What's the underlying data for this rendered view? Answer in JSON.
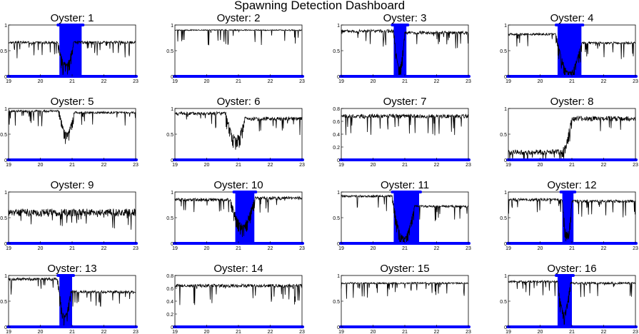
{
  "title": "Spawning Detection Dashboard",
  "colors": {
    "trace": "#000000",
    "spawn": "#0000ff",
    "axis": "#000000",
    "background": "#ffffff"
  },
  "chart_data": [
    {
      "type": "line",
      "title": "Oyster: 1",
      "xlim": [
        19,
        23
      ],
      "ylim": [
        0,
        1
      ],
      "xticks": [
        19,
        20,
        21,
        22,
        23
      ],
      "yticks": [
        0,
        0.5,
        1
      ],
      "baseline": 0.66,
      "noise": 0.05,
      "dip": {
        "start": 20.55,
        "end": 21.05,
        "min": 0.2
      },
      "recover_to": 0.66,
      "spawn_window": [
        20.6,
        21.3
      ]
    },
    {
      "type": "line",
      "title": "Oyster: 2",
      "xlim": [
        19,
        23
      ],
      "ylim": [
        0,
        1
      ],
      "xticks": [
        19,
        20,
        21,
        22,
        23
      ],
      "yticks": [
        0,
        0.5,
        1
      ],
      "baseline": 0.9,
      "noise": 0.02,
      "dip": null,
      "recover_to": 0.9,
      "spawn_window": null
    },
    {
      "type": "line",
      "title": "Oyster: 3",
      "xlim": [
        19,
        23
      ],
      "ylim": [
        0,
        1
      ],
      "xticks": [
        19,
        20,
        21,
        22,
        23
      ],
      "yticks": [
        0,
        0.5,
        1
      ],
      "baseline": 0.88,
      "noise": 0.06,
      "dip": {
        "start": 20.65,
        "end": 21.0,
        "min": 0.15
      },
      "recover_to": 0.85,
      "spawn_window": [
        20.65,
        21.05
      ]
    },
    {
      "type": "line",
      "title": "Oyster: 4",
      "xlim": [
        19,
        23
      ],
      "ylim": [
        0,
        1
      ],
      "xticks": [
        19,
        20,
        21,
        22,
        23
      ],
      "yticks": [
        0,
        0.5,
        1
      ],
      "baseline": 0.82,
      "noise": 0.04,
      "dip": {
        "start": 20.5,
        "end": 21.3,
        "min": 0.1
      },
      "recover_to": 0.65,
      "spawn_window": [
        20.55,
        21.3
      ]
    },
    {
      "type": "line",
      "title": "Oyster: 5",
      "xlim": [
        19,
        23
      ],
      "ylim": [
        0,
        1
      ],
      "xticks": [
        19,
        20,
        21,
        22,
        23
      ],
      "yticks": [
        0,
        0.5,
        1
      ],
      "baseline": 0.95,
      "noise": 0.04,
      "dip": {
        "start": 20.6,
        "end": 21.05,
        "min": 0.5
      },
      "recover_to": 0.92,
      "spawn_window": null
    },
    {
      "type": "line",
      "title": "Oyster: 6",
      "xlim": [
        19,
        23
      ],
      "ylim": [
        0,
        1
      ],
      "xticks": [
        19,
        20,
        21,
        22,
        23
      ],
      "yticks": [
        0,
        0.5,
        1
      ],
      "baseline": 0.9,
      "noise": 0.07,
      "dip": {
        "start": 20.6,
        "end": 21.2,
        "min": 0.45
      },
      "recover_to": 0.8,
      "spawn_window": null
    },
    {
      "type": "line",
      "title": "Oyster: 7",
      "xlim": [
        19,
        23
      ],
      "ylim": [
        0,
        0.8
      ],
      "xticks": [
        19,
        20,
        21,
        22,
        23
      ],
      "yticks": [
        0,
        0.2,
        0.4,
        0.6,
        0.8
      ],
      "baseline": 0.68,
      "noise": 0.06,
      "dip": null,
      "recover_to": 0.68,
      "spawn_window": null
    },
    {
      "type": "line",
      "title": "Oyster: 8",
      "xlim": [
        19,
        23
      ],
      "ylim": [
        0,
        1
      ],
      "xticks": [
        19,
        20,
        21,
        22,
        23
      ],
      "yticks": [
        0,
        0.5,
        1
      ],
      "baseline": 0.15,
      "noise": 0.1,
      "dip": {
        "start": 20.7,
        "end": 21.0,
        "min": 0.1
      },
      "recover_to": 0.8,
      "spawn_window": null
    },
    {
      "type": "line",
      "title": "Oyster: 9",
      "xlim": [
        19,
        23
      ],
      "ylim": [
        0,
        1
      ],
      "xticks": [
        19,
        20,
        21,
        22,
        23
      ],
      "yticks": [
        0,
        0.5,
        1
      ],
      "baseline": 0.6,
      "noise": 0.15,
      "dip": null,
      "recover_to": 0.6,
      "spawn_window": null
    },
    {
      "type": "line",
      "title": "Oyster: 10",
      "xlim": [
        19,
        23
      ],
      "ylim": [
        0,
        1
      ],
      "xticks": [
        19,
        20,
        21,
        22,
        23
      ],
      "yticks": [
        0,
        0.5,
        1
      ],
      "baseline": 0.85,
      "noise": 0.06,
      "dip": {
        "start": 20.75,
        "end": 21.5,
        "min": 0.3
      },
      "recover_to": 0.88,
      "spawn_window": [
        20.9,
        21.5
      ]
    },
    {
      "type": "line",
      "title": "Oyster: 11",
      "xlim": [
        19,
        23
      ],
      "ylim": [
        0,
        1
      ],
      "xticks": [
        19,
        20,
        21,
        22,
        23
      ],
      "yticks": [
        0,
        0.5,
        1
      ],
      "baseline": 0.92,
      "noise": 0.04,
      "dip": {
        "start": 20.6,
        "end": 21.3,
        "min": 0.15
      },
      "recover_to": 0.72,
      "spawn_window": [
        20.65,
        21.45
      ]
    },
    {
      "type": "line",
      "title": "Oyster: 12",
      "xlim": [
        19,
        23
      ],
      "ylim": [
        0,
        1
      ],
      "xticks": [
        19,
        20,
        21,
        22,
        23
      ],
      "yticks": [
        0,
        0.5,
        1
      ],
      "baseline": 0.85,
      "noise": 0.05,
      "dip": {
        "start": 20.7,
        "end": 21.0,
        "min": 0.15
      },
      "recover_to": 0.82,
      "spawn_window": [
        20.7,
        21.05
      ]
    },
    {
      "type": "line",
      "title": "Oyster: 13",
      "xlim": [
        19,
        23
      ],
      "ylim": [
        0,
        1
      ],
      "xticks": [
        19,
        20,
        21,
        22,
        23
      ],
      "yticks": [
        0,
        0.5,
        1
      ],
      "baseline": 0.93,
      "noise": 0.05,
      "dip": {
        "start": 20.55,
        "end": 20.95,
        "min": 0.3
      },
      "recover_to": 0.68,
      "spawn_window": [
        20.6,
        21.0
      ]
    },
    {
      "type": "line",
      "title": "Oyster: 14",
      "xlim": [
        19,
        23
      ],
      "ylim": [
        0,
        0.8
      ],
      "xticks": [
        19,
        20,
        21,
        22,
        23
      ],
      "yticks": [
        0,
        0.2,
        0.4,
        0.6,
        0.8
      ],
      "baseline": 0.64,
      "noise": 0.05,
      "dip": null,
      "recover_to": 0.64,
      "spawn_window": null
    },
    {
      "type": "line",
      "title": "Oyster: 15",
      "xlim": [
        19,
        23
      ],
      "ylim": [
        0,
        1
      ],
      "xticks": [
        19,
        20,
        21,
        22,
        23
      ],
      "yticks": [
        0,
        0.5,
        1
      ],
      "baseline": 0.85,
      "noise": 0.03,
      "dip": null,
      "recover_to": 0.85,
      "spawn_window": null
    },
    {
      "type": "line",
      "title": "Oyster: 16",
      "xlim": [
        19,
        23
      ],
      "ylim": [
        0,
        1
      ],
      "xticks": [
        19,
        20,
        21,
        22,
        23
      ],
      "yticks": [
        0,
        0.5,
        1
      ],
      "baseline": 0.88,
      "noise": 0.04,
      "dip": {
        "start": 20.55,
        "end": 20.95,
        "min": 0.25
      },
      "recover_to": 0.85,
      "spawn_window": [
        20.55,
        21.0
      ]
    }
  ]
}
